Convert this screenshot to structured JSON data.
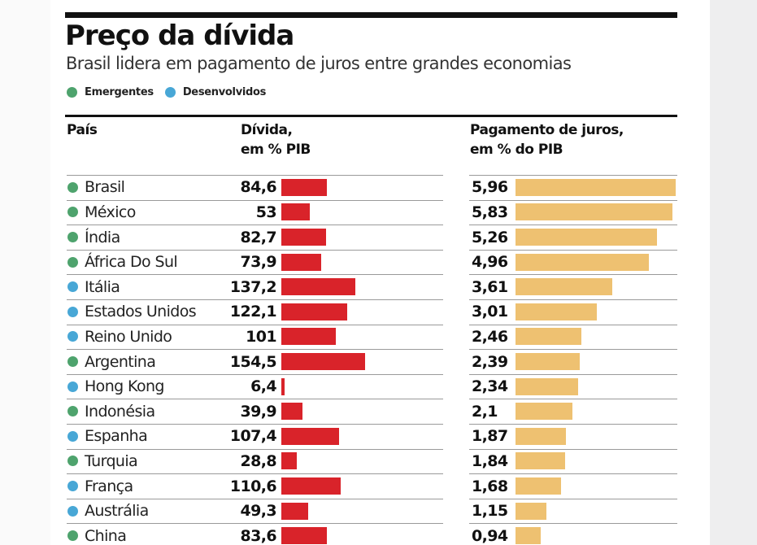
{
  "title": "Preço da dívida",
  "subtitle": "Brasil lidera em pagamento de juros entre grandes economias",
  "legend": [
    {
      "label": "Emergentes",
      "color": "#4ea36d"
    },
    {
      "label": "Desenvolvidos",
      "color": "#48a7d6"
    }
  ],
  "headers": {
    "country": "País",
    "debt_line1": "Dívida,",
    "debt_line2": "em % PIB",
    "interest_line1": "Pagamento de juros,",
    "interest_line2": "em % do PIB"
  },
  "colors": {
    "emergentes": "#4ea36d",
    "desenvolvidos": "#48a7d6",
    "debt_bar": "#d9232a",
    "interest_bar": "#eec171"
  },
  "chart_data": {
    "type": "bar",
    "title": "Preço da dívida",
    "subtitle": "Brasil lidera em pagamento de juros entre grandes economias",
    "categories": [
      "Brasil",
      "México",
      "Índia",
      "África Do Sul",
      "Itália",
      "Estados Unidos",
      "Reino Unido",
      "Argentina",
      "Hong Kong",
      "Indonésia",
      "Espanha",
      "Turquia",
      "França",
      "Austrália",
      "China"
    ],
    "groups": [
      "Emergentes",
      "Emergentes",
      "Emergentes",
      "Emergentes",
      "Desenvolvidos",
      "Desenvolvidos",
      "Desenvolvidos",
      "Emergentes",
      "Desenvolvidos",
      "Emergentes",
      "Desenvolvidos",
      "Emergentes",
      "Desenvolvidos",
      "Desenvolvidos",
      "Emergentes"
    ],
    "series": [
      {
        "name": "Dívida, em % PIB",
        "values": [
          84.6,
          53,
          82.7,
          73.9,
          137.2,
          122.1,
          101,
          154.5,
          6.4,
          39.9,
          107.4,
          28.8,
          110.6,
          49.3,
          83.6
        ],
        "labels": [
          "84,6",
          "53",
          "82,7",
          "73,9",
          "137,2",
          "122,1",
          "101",
          "154,5",
          "6,4",
          "39,9",
          "107,4",
          "28,8",
          "110,6",
          "49,3",
          "83,6"
        ]
      },
      {
        "name": "Pagamento de juros, em % do PIB",
        "values": [
          5.96,
          5.83,
          5.26,
          4.96,
          3.61,
          3.01,
          2.46,
          2.39,
          2.34,
          2.1,
          1.87,
          1.84,
          1.68,
          1.15,
          0.94
        ],
        "labels": [
          "5,96",
          "5,83",
          "5,26",
          "4,96",
          "3,61",
          "3,01",
          "2,46",
          "2,39",
          "2,34",
          "2,1",
          "1,87",
          "1,84",
          "1,68",
          "1,15",
          "0,94"
        ]
      }
    ],
    "legend_position": "top-left",
    "grid": false
  }
}
